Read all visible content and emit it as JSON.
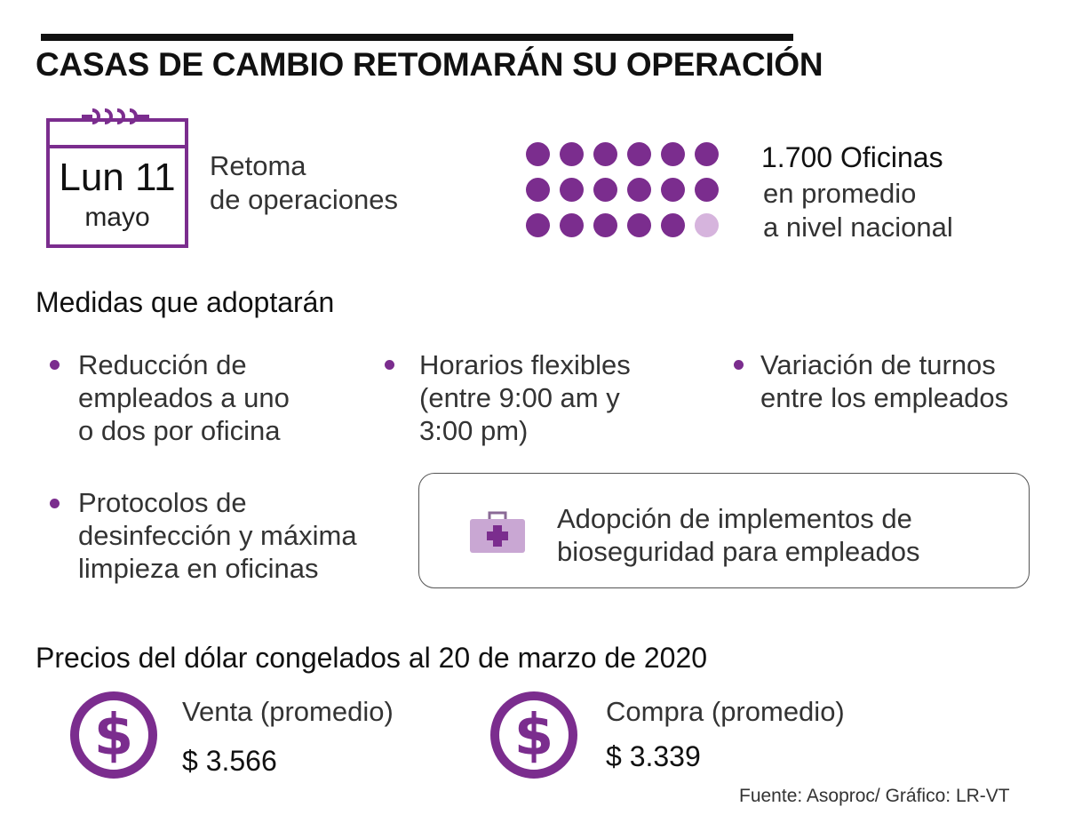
{
  "title": "CASAS DE CAMBIO RETOMARÁN SU OPERACIÓN",
  "calendar": {
    "day": "Lun 11",
    "month": "mayo",
    "icon": "calendar-icon"
  },
  "retoma": {
    "line1": "Retoma",
    "line2": "de operaciones"
  },
  "oficinas": {
    "count_label": "1.700 Oficinas",
    "line2": "en promedio",
    "line3": "a nivel nacional",
    "dots_total": 18,
    "dots_filled": 17
  },
  "medidas": {
    "title": "Medidas que adoptarán",
    "items": [
      {
        "lines": [
          "Reducción de",
          "empleados a uno",
          "o dos por oficina"
        ]
      },
      {
        "lines": [
          "Horarios flexibles",
          "(entre 9:00 am y",
          "3:00 pm)"
        ]
      },
      {
        "lines": [
          "Variación de turnos",
          "entre los empleados"
        ]
      },
      {
        "lines": [
          "Protocolos de",
          "desinfección y máxima",
          "limpieza en oficinas"
        ]
      }
    ],
    "bioseguridad": {
      "lines": [
        "Adopción de implementos de",
        "bioseguridad para empleados"
      ],
      "icon": "first-aid-kit-icon"
    }
  },
  "precios": {
    "title": "Precios del dólar congelados al 20 de marzo de 2020",
    "venta": {
      "label": "Venta (promedio)",
      "value": "$ 3.566",
      "icon": "dollar-coin-icon"
    },
    "compra": {
      "label": "Compra (promedio)",
      "value": "$ 3.339",
      "icon": "dollar-coin-icon"
    }
  },
  "fuente": "Fuente: Asoproc/ Gráfico: LR-VT",
  "colors": {
    "accent": "#7b2d8e",
    "accent_light": "#d6b4dd"
  }
}
